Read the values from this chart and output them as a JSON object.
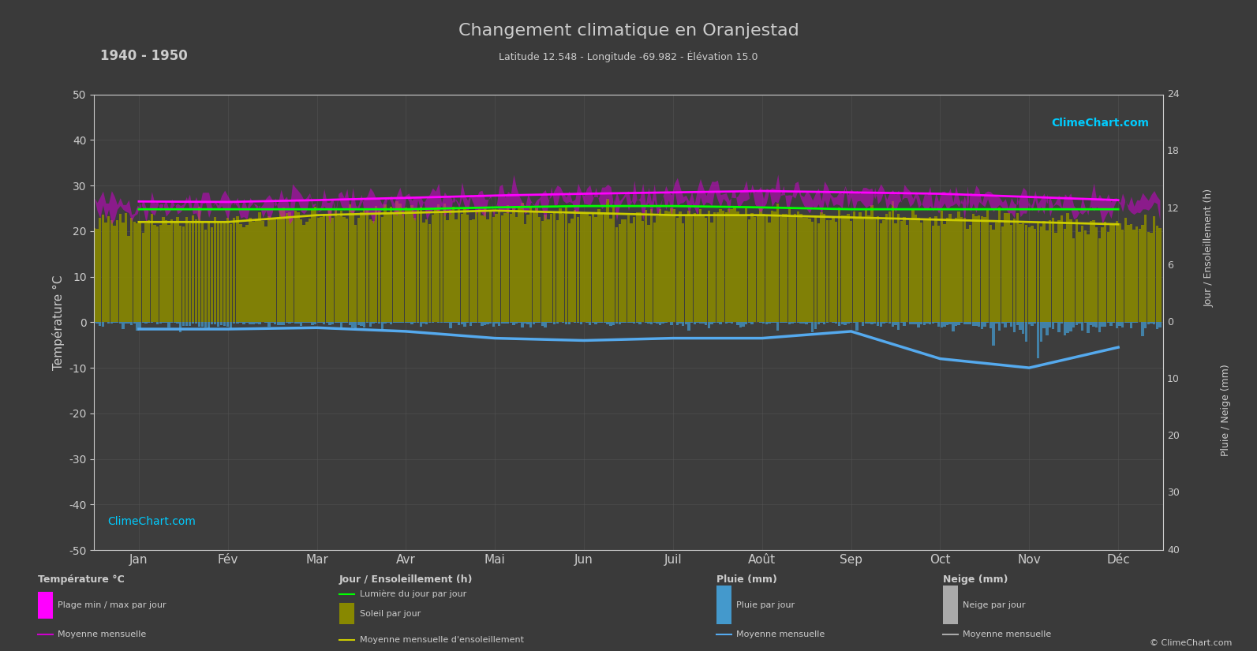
{
  "title": "Changement climatique en Oranjestad",
  "subtitle": "Latitude 12.548 - Longitude -69.982 - Élévation 15.0",
  "period": "1940 - 1950",
  "background_color": "#3a3a3a",
  "plot_bg_color": "#3d3d3d",
  "grid_color": "#555555",
  "text_color": "#cccccc",
  "ylim_temp": [
    -50,
    50
  ],
  "months": [
    "Jan",
    "Fév",
    "Mar",
    "Avr",
    "Mai",
    "Jun",
    "Juil",
    "Août",
    "Sep",
    "Oct",
    "Nov",
    "Déc"
  ],
  "temp_max_mean": [
    26.5,
    26.4,
    26.8,
    27.3,
    27.8,
    28.2,
    28.5,
    28.8,
    28.5,
    28.2,
    27.5,
    26.8
  ],
  "temp_min_mean": [
    24.5,
    24.3,
    24.5,
    24.8,
    25.2,
    25.8,
    26.0,
    26.2,
    26.0,
    25.5,
    25.0,
    24.6
  ],
  "sunshine_mean": [
    22.0,
    22.0,
    23.5,
    24.0,
    24.5,
    24.0,
    23.5,
    23.5,
    23.0,
    22.5,
    22.0,
    21.5
  ],
  "daylight_mean": [
    24.8,
    24.8,
    24.8,
    24.8,
    25.2,
    25.5,
    25.5,
    25.2,
    24.8,
    24.8,
    24.8,
    24.8
  ],
  "rain_monthly_mm": [
    2.5,
    3.0,
    2.0,
    2.0,
    2.5,
    2.0,
    1.5,
    1.5,
    2.0,
    5.0,
    8.0,
    5.0
  ],
  "rain_mean_monthly_neg": [
    -1.5,
    -1.5,
    -1.2,
    -2.0,
    -3.5,
    -4.0,
    -3.5,
    -3.5,
    -2.0,
    -8.0,
    -10.0,
    -5.5
  ],
  "temp_max_color": "#ff00ff",
  "temp_band_color": "#cc00cc",
  "sunshine_color": "#cccc00",
  "sunshine_fill_color": "#888800",
  "daylight_color": "#00ff00",
  "rain_bar_color": "#4499cc",
  "rain_mean_color": "#55aaee",
  "logo_text_color": "#00ccff"
}
